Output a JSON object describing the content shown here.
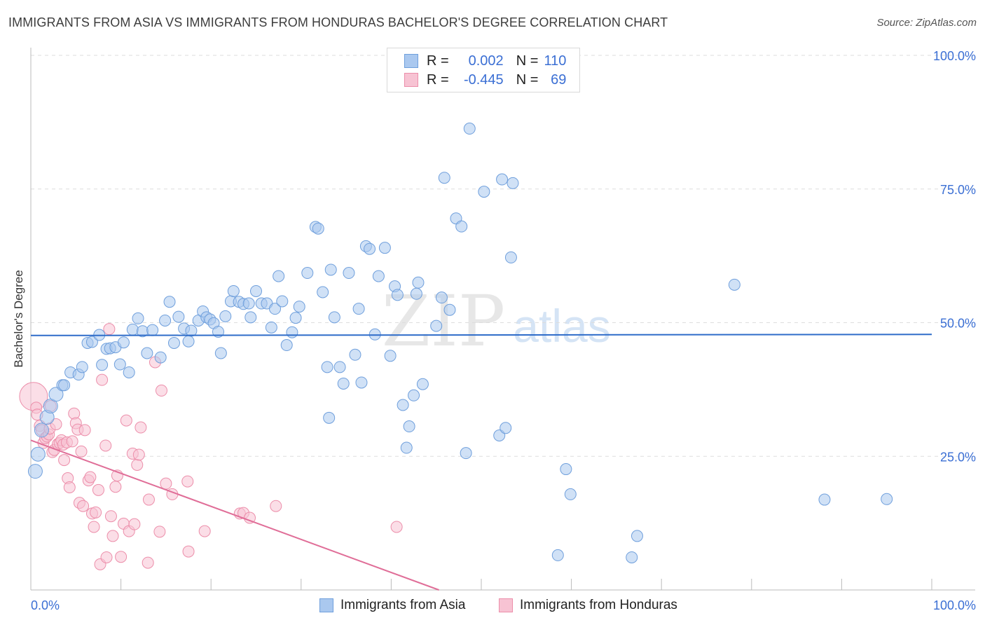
{
  "title": "IMMIGRANTS FROM ASIA VS IMMIGRANTS FROM HONDURAS BACHELOR'S DEGREE CORRELATION CHART",
  "source": "Source: ZipAtlas.com",
  "watermark": {
    "zip": "ZIP",
    "atlas": "atlas"
  },
  "legend": {
    "rows": [
      {
        "r_label": "R =",
        "r_value": "0.002",
        "n_label": "N =",
        "n_value": "110"
      },
      {
        "r_label": "R =",
        "r_value": "-0.445",
        "n_label": "N =",
        "n_value": "69"
      }
    ]
  },
  "colors": {
    "asia_fill": "#aac8ef",
    "asia_stroke": "#6f9fdc",
    "asia_line": "#2e6cc9",
    "honduras_fill": "#f7c3d3",
    "honduras_stroke": "#ec8eaa",
    "honduras_line": "#e06e98",
    "tick_label": "#3b6fd4",
    "grid": "#dddddd"
  },
  "chart_data": {
    "type": "scatter",
    "title": "IMMIGRANTS FROM ASIA VS IMMIGRANTS FROM HONDURAS BACHELOR'S DEGREE CORRELATION CHART",
    "xlabel": "",
    "ylabel": "Bachelor's Degree",
    "xlim": [
      0,
      100
    ],
    "ylim": [
      0,
      100
    ],
    "x_tick_labels": [
      "0.0%",
      "100.0%"
    ],
    "y_tick_labels": [
      "25.0%",
      "50.0%",
      "75.0%",
      "100.0%"
    ],
    "y_ticks": [
      25,
      50,
      75,
      100
    ],
    "grid": true,
    "legend_placement": "top-center",
    "series": [
      {
        "name": "Immigrants from Asia",
        "r": 0.002,
        "n": 110,
        "trend": {
          "x": [
            0,
            100
          ],
          "y": [
            47.6,
            47.8
          ]
        },
        "points": [
          [
            0.5,
            22.2
          ],
          [
            0.8,
            25.4
          ],
          [
            1.2,
            29.9
          ],
          [
            1.8,
            32.3
          ],
          [
            2.2,
            34.4
          ],
          [
            2.8,
            36.6
          ],
          [
            3.5,
            38.3
          ],
          [
            3.7,
            38.3
          ],
          [
            4.4,
            40.7
          ],
          [
            5.3,
            40.3
          ],
          [
            5.7,
            41.7
          ],
          [
            6.3,
            46.2
          ],
          [
            6.8,
            46.4
          ],
          [
            7.6,
            47.7
          ],
          [
            7.9,
            42.1
          ],
          [
            8.4,
            45.1
          ],
          [
            8.8,
            45.2
          ],
          [
            9.4,
            45.4
          ],
          [
            9.9,
            42.2
          ],
          [
            10.3,
            46.3
          ],
          [
            10.9,
            40.7
          ],
          [
            11.3,
            48.7
          ],
          [
            11.9,
            50.8
          ],
          [
            12.4,
            48.4
          ],
          [
            12.9,
            44.3
          ],
          [
            13.5,
            48.6
          ],
          [
            14.4,
            43.5
          ],
          [
            14.9,
            50.4
          ],
          [
            15.4,
            53.9
          ],
          [
            15.9,
            46.2
          ],
          [
            16.4,
            51.1
          ],
          [
            17.0,
            48.9
          ],
          [
            17.5,
            46.5
          ],
          [
            17.8,
            48.5
          ],
          [
            18.6,
            50.4
          ],
          [
            19.1,
            52.1
          ],
          [
            19.5,
            51.0
          ],
          [
            19.9,
            50.6
          ],
          [
            20.3,
            49.9
          ],
          [
            20.8,
            48.3
          ],
          [
            21.1,
            44.3
          ],
          [
            21.6,
            51.2
          ],
          [
            22.2,
            54.0
          ],
          [
            22.5,
            55.9
          ],
          [
            23.1,
            53.9
          ],
          [
            23.6,
            53.5
          ],
          [
            24.2,
            53.6
          ],
          [
            24.4,
            51.0
          ],
          [
            25.0,
            55.9
          ],
          [
            25.6,
            53.6
          ],
          [
            26.2,
            53.6
          ],
          [
            26.7,
            49.1
          ],
          [
            27.1,
            52.6
          ],
          [
            27.5,
            58.7
          ],
          [
            27.9,
            54.0
          ],
          [
            28.4,
            45.8
          ],
          [
            29.0,
            48.2
          ],
          [
            29.4,
            50.9
          ],
          [
            29.8,
            53.0
          ],
          [
            30.7,
            59.3
          ],
          [
            31.6,
            67.9
          ],
          [
            31.9,
            67.6
          ],
          [
            32.4,
            55.7
          ],
          [
            32.9,
            41.7
          ],
          [
            33.1,
            32.2
          ],
          [
            33.3,
            59.9
          ],
          [
            33.7,
            51.0
          ],
          [
            34.3,
            41.7
          ],
          [
            34.7,
            38.6
          ],
          [
            35.3,
            59.3
          ],
          [
            36.0,
            44.0
          ],
          [
            36.4,
            52.6
          ],
          [
            36.7,
            38.8
          ],
          [
            37.2,
            64.3
          ],
          [
            37.6,
            63.8
          ],
          [
            38.2,
            47.8
          ],
          [
            38.6,
            58.7
          ],
          [
            39.3,
            64.0
          ],
          [
            39.9,
            43.8
          ],
          [
            40.4,
            56.8
          ],
          [
            40.7,
            55.2
          ],
          [
            41.3,
            34.6
          ],
          [
            41.7,
            26.6
          ],
          [
            42.0,
            30.6
          ],
          [
            42.5,
            36.4
          ],
          [
            42.8,
            55.4
          ],
          [
            43.0,
            57.5
          ],
          [
            43.5,
            38.5
          ],
          [
            45.0,
            49.4
          ],
          [
            45.6,
            54.7
          ],
          [
            45.9,
            77.1
          ],
          [
            46.5,
            52.4
          ],
          [
            47.2,
            69.5
          ],
          [
            47.8,
            68.0
          ],
          [
            48.3,
            25.6
          ],
          [
            48.7,
            86.3
          ],
          [
            50.3,
            74.5
          ],
          [
            52.0,
            28.9
          ],
          [
            52.3,
            76.8
          ],
          [
            52.7,
            30.3
          ],
          [
            53.3,
            62.2
          ],
          [
            53.5,
            76.1
          ],
          [
            58.5,
            6.5
          ],
          [
            59.4,
            22.6
          ],
          [
            59.9,
            17.9
          ],
          [
            66.7,
            6.1
          ],
          [
            67.3,
            10.1
          ],
          [
            78.1,
            57.1
          ],
          [
            88.1,
            16.9
          ],
          [
            95.0,
            17.0
          ]
        ]
      },
      {
        "name": "Immigrants from Honduras",
        "r": -0.445,
        "n": 69,
        "trend": {
          "x": [
            0,
            45.3
          ],
          "y": [
            28.0,
            0
          ]
        },
        "points": [
          [
            0.3,
            36.2
          ],
          [
            0.6,
            34.1
          ],
          [
            0.7,
            32.8
          ],
          [
            1.0,
            30.7
          ],
          [
            1.2,
            29.9
          ],
          [
            1.4,
            27.5
          ],
          [
            1.6,
            28.4
          ],
          [
            1.8,
            28.7
          ],
          [
            2.0,
            29.1
          ],
          [
            2.1,
            30.2
          ],
          [
            2.2,
            34.4
          ],
          [
            2.4,
            25.8
          ],
          [
            2.6,
            26.2
          ],
          [
            2.8,
            31.0
          ],
          [
            3.0,
            27.3
          ],
          [
            3.2,
            27.5
          ],
          [
            3.4,
            28.0
          ],
          [
            3.6,
            27.2
          ],
          [
            3.7,
            24.3
          ],
          [
            4.0,
            27.6
          ],
          [
            4.1,
            20.9
          ],
          [
            4.3,
            19.2
          ],
          [
            4.6,
            27.8
          ],
          [
            4.8,
            33.0
          ],
          [
            5.0,
            31.2
          ],
          [
            5.2,
            30.0
          ],
          [
            5.4,
            16.3
          ],
          [
            5.6,
            25.9
          ],
          [
            5.8,
            15.7
          ],
          [
            6.0,
            29.9
          ],
          [
            6.4,
            20.5
          ],
          [
            6.6,
            21.1
          ],
          [
            6.8,
            14.3
          ],
          [
            7.0,
            11.8
          ],
          [
            7.2,
            14.5
          ],
          [
            7.5,
            18.7
          ],
          [
            7.7,
            4.8
          ],
          [
            7.9,
            39.3
          ],
          [
            8.3,
            27.0
          ],
          [
            8.4,
            6.1
          ],
          [
            8.7,
            48.8
          ],
          [
            8.9,
            13.8
          ],
          [
            9.1,
            10.1
          ],
          [
            9.4,
            19.3
          ],
          [
            9.6,
            21.4
          ],
          [
            10.0,
            6.2
          ],
          [
            10.3,
            12.4
          ],
          [
            10.6,
            31.7
          ],
          [
            10.9,
            11.0
          ],
          [
            11.3,
            25.5
          ],
          [
            11.5,
            12.3
          ],
          [
            11.8,
            23.4
          ],
          [
            12.0,
            25.3
          ],
          [
            12.2,
            30.4
          ],
          [
            13.0,
            5.1
          ],
          [
            13.1,
            16.9
          ],
          [
            13.8,
            42.6
          ],
          [
            14.3,
            10.9
          ],
          [
            14.5,
            37.3
          ],
          [
            15.0,
            19.9
          ],
          [
            15.7,
            17.9
          ],
          [
            17.4,
            20.3
          ],
          [
            17.5,
            7.2
          ],
          [
            19.3,
            11.0
          ],
          [
            23.2,
            14.3
          ],
          [
            23.6,
            14.4
          ],
          [
            24.3,
            13.5
          ],
          [
            27.2,
            15.7
          ],
          [
            40.6,
            11.8
          ]
        ]
      }
    ]
  },
  "bottom_legend": [
    {
      "label": "Immigrants from Asia"
    },
    {
      "label": "Immigrants from Honduras"
    }
  ]
}
